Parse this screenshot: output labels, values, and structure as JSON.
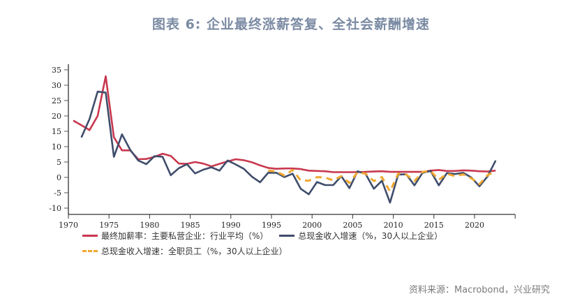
{
  "title": "图表 6:  企业最终涨薪答复、全社会薪酬增速",
  "source": "资料来源：Macrobond，兴业研究",
  "legend": {
    "series1": "最终加薪率：主要私营企业：行业平均（%）",
    "series2": "总现金收入增速（%，30人以上企业）",
    "series3": "总现金收入增速：全职员工（%，30人以上企业）"
  },
  "colors": {
    "series1": "#c8384f",
    "series2": "#3f4d6b",
    "series3": "#f0a830",
    "title": "#7b8ba3"
  },
  "chart_data": {
    "type": "line",
    "title": "图表 6:  企业最终涨薪答复、全社会薪酬增速",
    "xlabel": "",
    "ylabel": "",
    "xlim": [
      1970,
      2025
    ],
    "ylim": [
      -12,
      37
    ],
    "yticks": [
      -10,
      -5,
      0,
      5,
      10,
      15,
      20,
      25,
      30,
      35
    ],
    "xticks": [
      1970,
      1975,
      1980,
      1985,
      1990,
      1995,
      2000,
      2005,
      2010,
      2015,
      2020
    ],
    "grid": false,
    "legend_position": "bottom",
    "series": [
      {
        "name": "最终加薪率：主要私营企业：行业平均（%）",
        "color": "#c8384f",
        "style": "solid",
        "x": [
          1970.6,
          1971.6,
          1972.6,
          1973.6,
          1974.6,
          1975.6,
          1976.6,
          1977.6,
          1978.6,
          1979.6,
          1980.6,
          1981.6,
          1982.6,
          1983.6,
          1984.6,
          1985.6,
          1986.6,
          1987.6,
          1988.6,
          1989.6,
          1990.6,
          1991.6,
          1992.6,
          1993.6,
          1994.6,
          1995.6,
          1996.6,
          1997.6,
          1998.6,
          1999.6,
          2000.6,
          2001.6,
          2002.6,
          2003.6,
          2004.6,
          2005.6,
          2006.6,
          2007.6,
          2008.6,
          2009.6,
          2010.6,
          2011.6,
          2012.6,
          2013.6,
          2014.6,
          2015.6,
          2016.6,
          2017.6,
          2018.6,
          2019.6,
          2020.6,
          2021.6,
          2022.6
        ],
        "values": [
          18.5,
          17.0,
          15.4,
          20.0,
          32.9,
          13.1,
          8.8,
          8.8,
          5.9,
          6.0,
          6.7,
          7.7,
          7.0,
          4.5,
          4.4,
          5.0,
          4.5,
          3.6,
          4.4,
          5.2,
          5.9,
          5.6,
          4.9,
          3.9,
          3.1,
          2.8,
          2.9,
          2.9,
          2.7,
          2.2,
          2.1,
          2.0,
          1.7,
          1.7,
          1.7,
          1.7,
          1.8,
          1.9,
          2.0,
          1.8,
          1.8,
          1.8,
          1.8,
          1.8,
          2.2,
          2.4,
          2.1,
          2.1,
          2.3,
          2.2,
          2.0,
          1.9,
          2.2
        ]
      },
      {
        "name": "总现金收入增速（%，30人以上企业）",
        "color": "#3f4d6b",
        "style": "solid",
        "x": [
          1971.6,
          1972.6,
          1973.6,
          1974.6,
          1975.6,
          1976.6,
          1977.6,
          1978.6,
          1979.6,
          1980.6,
          1981.6,
          1982.6,
          1983.6,
          1984.6,
          1985.6,
          1986.6,
          1987.6,
          1988.6,
          1989.6,
          1990.6,
          1991.6,
          1992.6,
          1993.6,
          1994.6,
          1995.6,
          1996.6,
          1997.6,
          1998.6,
          1999.6,
          2000.6,
          2001.6,
          2002.6,
          2003.6,
          2004.6,
          2005.6,
          2006.6,
          2007.6,
          2008.6,
          2009.6,
          2010.6,
          2011.6,
          2012.6,
          2013.6,
          2014.6,
          2015.6,
          2016.6,
          2017.6,
          2018.6,
          2019.6,
          2020.6,
          2021.6,
          2022.6
        ],
        "values": [
          13.0,
          19.0,
          27.9,
          27.6,
          6.7,
          14.0,
          9.0,
          5.5,
          4.3,
          6.9,
          6.7,
          0.7,
          3.0,
          4.3,
          1.3,
          2.5,
          3.3,
          2.2,
          5.5,
          4.2,
          2.8,
          0.2,
          -1.6,
          1.5,
          1.5,
          0.1,
          1.2,
          -3.7,
          -5.5,
          -1.5,
          -2.5,
          -2.5,
          0.4,
          -3.5,
          2.0,
          1.1,
          -3.7,
          -1.1,
          -8.2,
          0.9,
          1.0,
          -2.6,
          1.5,
          2.1,
          -2.6,
          1.4,
          1.1,
          1.5,
          0.0,
          -2.9,
          0.3,
          5.5
        ]
      },
      {
        "name": "总现金收入增速：全职员工（%，30人以上企业）",
        "color": "#f0a830",
        "style": "dashed",
        "x": [
          1994.6,
          1995.6,
          1996.6,
          1997.6,
          1998.6,
          1999.6,
          2000.6,
          2001.6,
          2002.6,
          2003.6,
          2004.6,
          2005.6,
          2006.6,
          2007.6,
          2008.6,
          2009.6,
          2010.6,
          2011.6,
          2012.6,
          2013.6,
          2014.6,
          2015.6,
          2016.6,
          2017.6,
          2018.6,
          2019.6,
          2020.6,
          2021.6,
          2022.6
        ],
        "values": [
          2.2,
          1.9,
          0.6,
          2.4,
          -1.0,
          -1.1,
          0.1,
          0.0,
          -1.0,
          0.4,
          -1.8,
          1.7,
          1.2,
          -1.2,
          0.1,
          -4.6,
          1.2,
          0.9,
          -1.2,
          1.8,
          2.1,
          -0.8,
          1.2,
          0.4,
          1.0,
          -0.3,
          -2.2,
          0.7,
          2.1
        ]
      }
    ]
  }
}
